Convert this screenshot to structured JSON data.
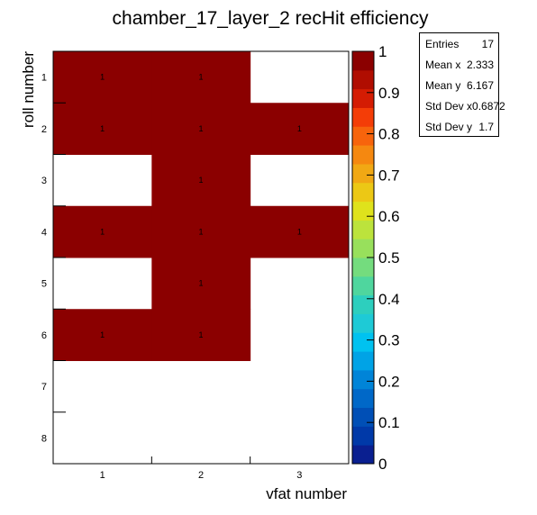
{
  "chart_data": {
    "type": "heatmap",
    "title": "chamber_17_layer_2 recHit efficiency",
    "xlabel": "vfat number",
    "ylabel": "roll number",
    "x_categories": [
      "1",
      "2",
      "3"
    ],
    "y_categories": [
      "1",
      "2",
      "3",
      "4",
      "5",
      "6",
      "7",
      "8"
    ],
    "cells": [
      {
        "x": "1",
        "y": "1",
        "value": 1,
        "label": "1"
      },
      {
        "x": "2",
        "y": "1",
        "value": 1,
        "label": "1"
      },
      {
        "x": "1",
        "y": "2",
        "value": 1,
        "label": "1"
      },
      {
        "x": "2",
        "y": "2",
        "value": 1,
        "label": "1"
      },
      {
        "x": "3",
        "y": "2",
        "value": 1,
        "label": "1"
      },
      {
        "x": "2",
        "y": "3",
        "value": 1,
        "label": "1"
      },
      {
        "x": "1",
        "y": "4",
        "value": 1,
        "label": "1"
      },
      {
        "x": "2",
        "y": "4",
        "value": 1,
        "label": "1"
      },
      {
        "x": "3",
        "y": "4",
        "value": 1,
        "label": "1"
      },
      {
        "x": "2",
        "y": "5",
        "value": 1,
        "label": "1"
      },
      {
        "x": "1",
        "y": "6",
        "value": 1,
        "label": "1"
      },
      {
        "x": "2",
        "y": "6",
        "value": 1,
        "label": "1"
      }
    ],
    "zlim": [
      0,
      1
    ],
    "colorbar_ticks": [
      "0",
      "0.1",
      "0.2",
      "0.3",
      "0.4",
      "0.5",
      "0.6",
      "0.7",
      "0.8",
      "0.9",
      "1"
    ],
    "colorbar_colors": [
      "#0a1f90",
      "#0039a8",
      "#004fb6",
      "#0068c8",
      "#0084d8",
      "#00a3e6",
      "#00c2f0",
      "#1ecad6",
      "#2dcfbe",
      "#4fd69e",
      "#74dc7e",
      "#98e05c",
      "#bce33c",
      "#dfe21c",
      "#ecc815",
      "#f1a814",
      "#f58810",
      "#f7640c",
      "#f43d07",
      "#d41c03",
      "#b00d01",
      "#8b0000"
    ],
    "stats": {
      "rows": [
        {
          "label": "Entries",
          "value": "17"
        },
        {
          "label": "Mean x",
          "value": "2.333"
        },
        {
          "label": "Mean y",
          "value": "6.167"
        },
        {
          "label": "Std Dev x",
          "value": "0.6872"
        },
        {
          "label": "Std Dev y",
          "value": "1.7"
        }
      ]
    },
    "colors": {
      "cell": "#8b0000"
    }
  }
}
